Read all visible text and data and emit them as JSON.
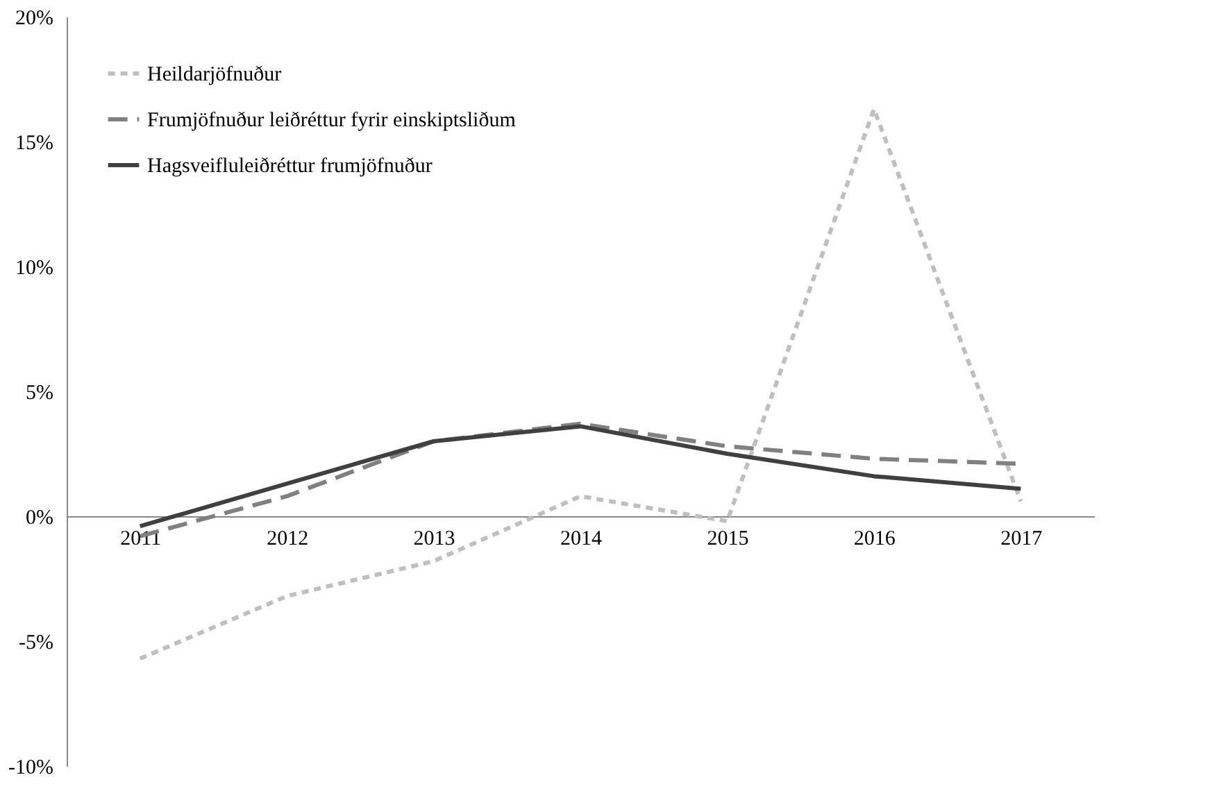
{
  "chart_data": {
    "type": "line",
    "categories": [
      "2011",
      "2012",
      "2013",
      "2014",
      "2015",
      "2016",
      "2017"
    ],
    "series": [
      {
        "name": "Heildarjöfnuður",
        "color": "#bfbfbf",
        "line_style": "dotted",
        "values": [
          -5.7,
          -3.2,
          -1.8,
          0.8,
          -0.2,
          16.3,
          0.6
        ]
      },
      {
        "name": "Frumjöfnuður leiðréttur fyrir einskiptsliðum",
        "color": "#808080",
        "line_style": "dashed",
        "values": [
          -0.8,
          0.8,
          3.0,
          3.7,
          2.8,
          2.3,
          2.1
        ]
      },
      {
        "name": "Hagsveifluleiðréttur frumjöfnuður",
        "color": "#404040",
        "line_style": "solid",
        "values": [
          -0.4,
          1.3,
          3.0,
          3.6,
          2.5,
          1.6,
          1.1
        ]
      }
    ],
    "ylim": [
      -10,
      20
    ],
    "yticks": [
      {
        "value": -10,
        "label": "-10%"
      },
      {
        "value": -5,
        "label": "-5%"
      },
      {
        "value": 0,
        "label": "0%"
      },
      {
        "value": 5,
        "label": "5%"
      },
      {
        "value": 10,
        "label": "10%"
      },
      {
        "value": 15,
        "label": "15%"
      },
      {
        "value": 20,
        "label": "20%"
      }
    ],
    "grid": false,
    "legend": "top left",
    "marker": "none"
  }
}
